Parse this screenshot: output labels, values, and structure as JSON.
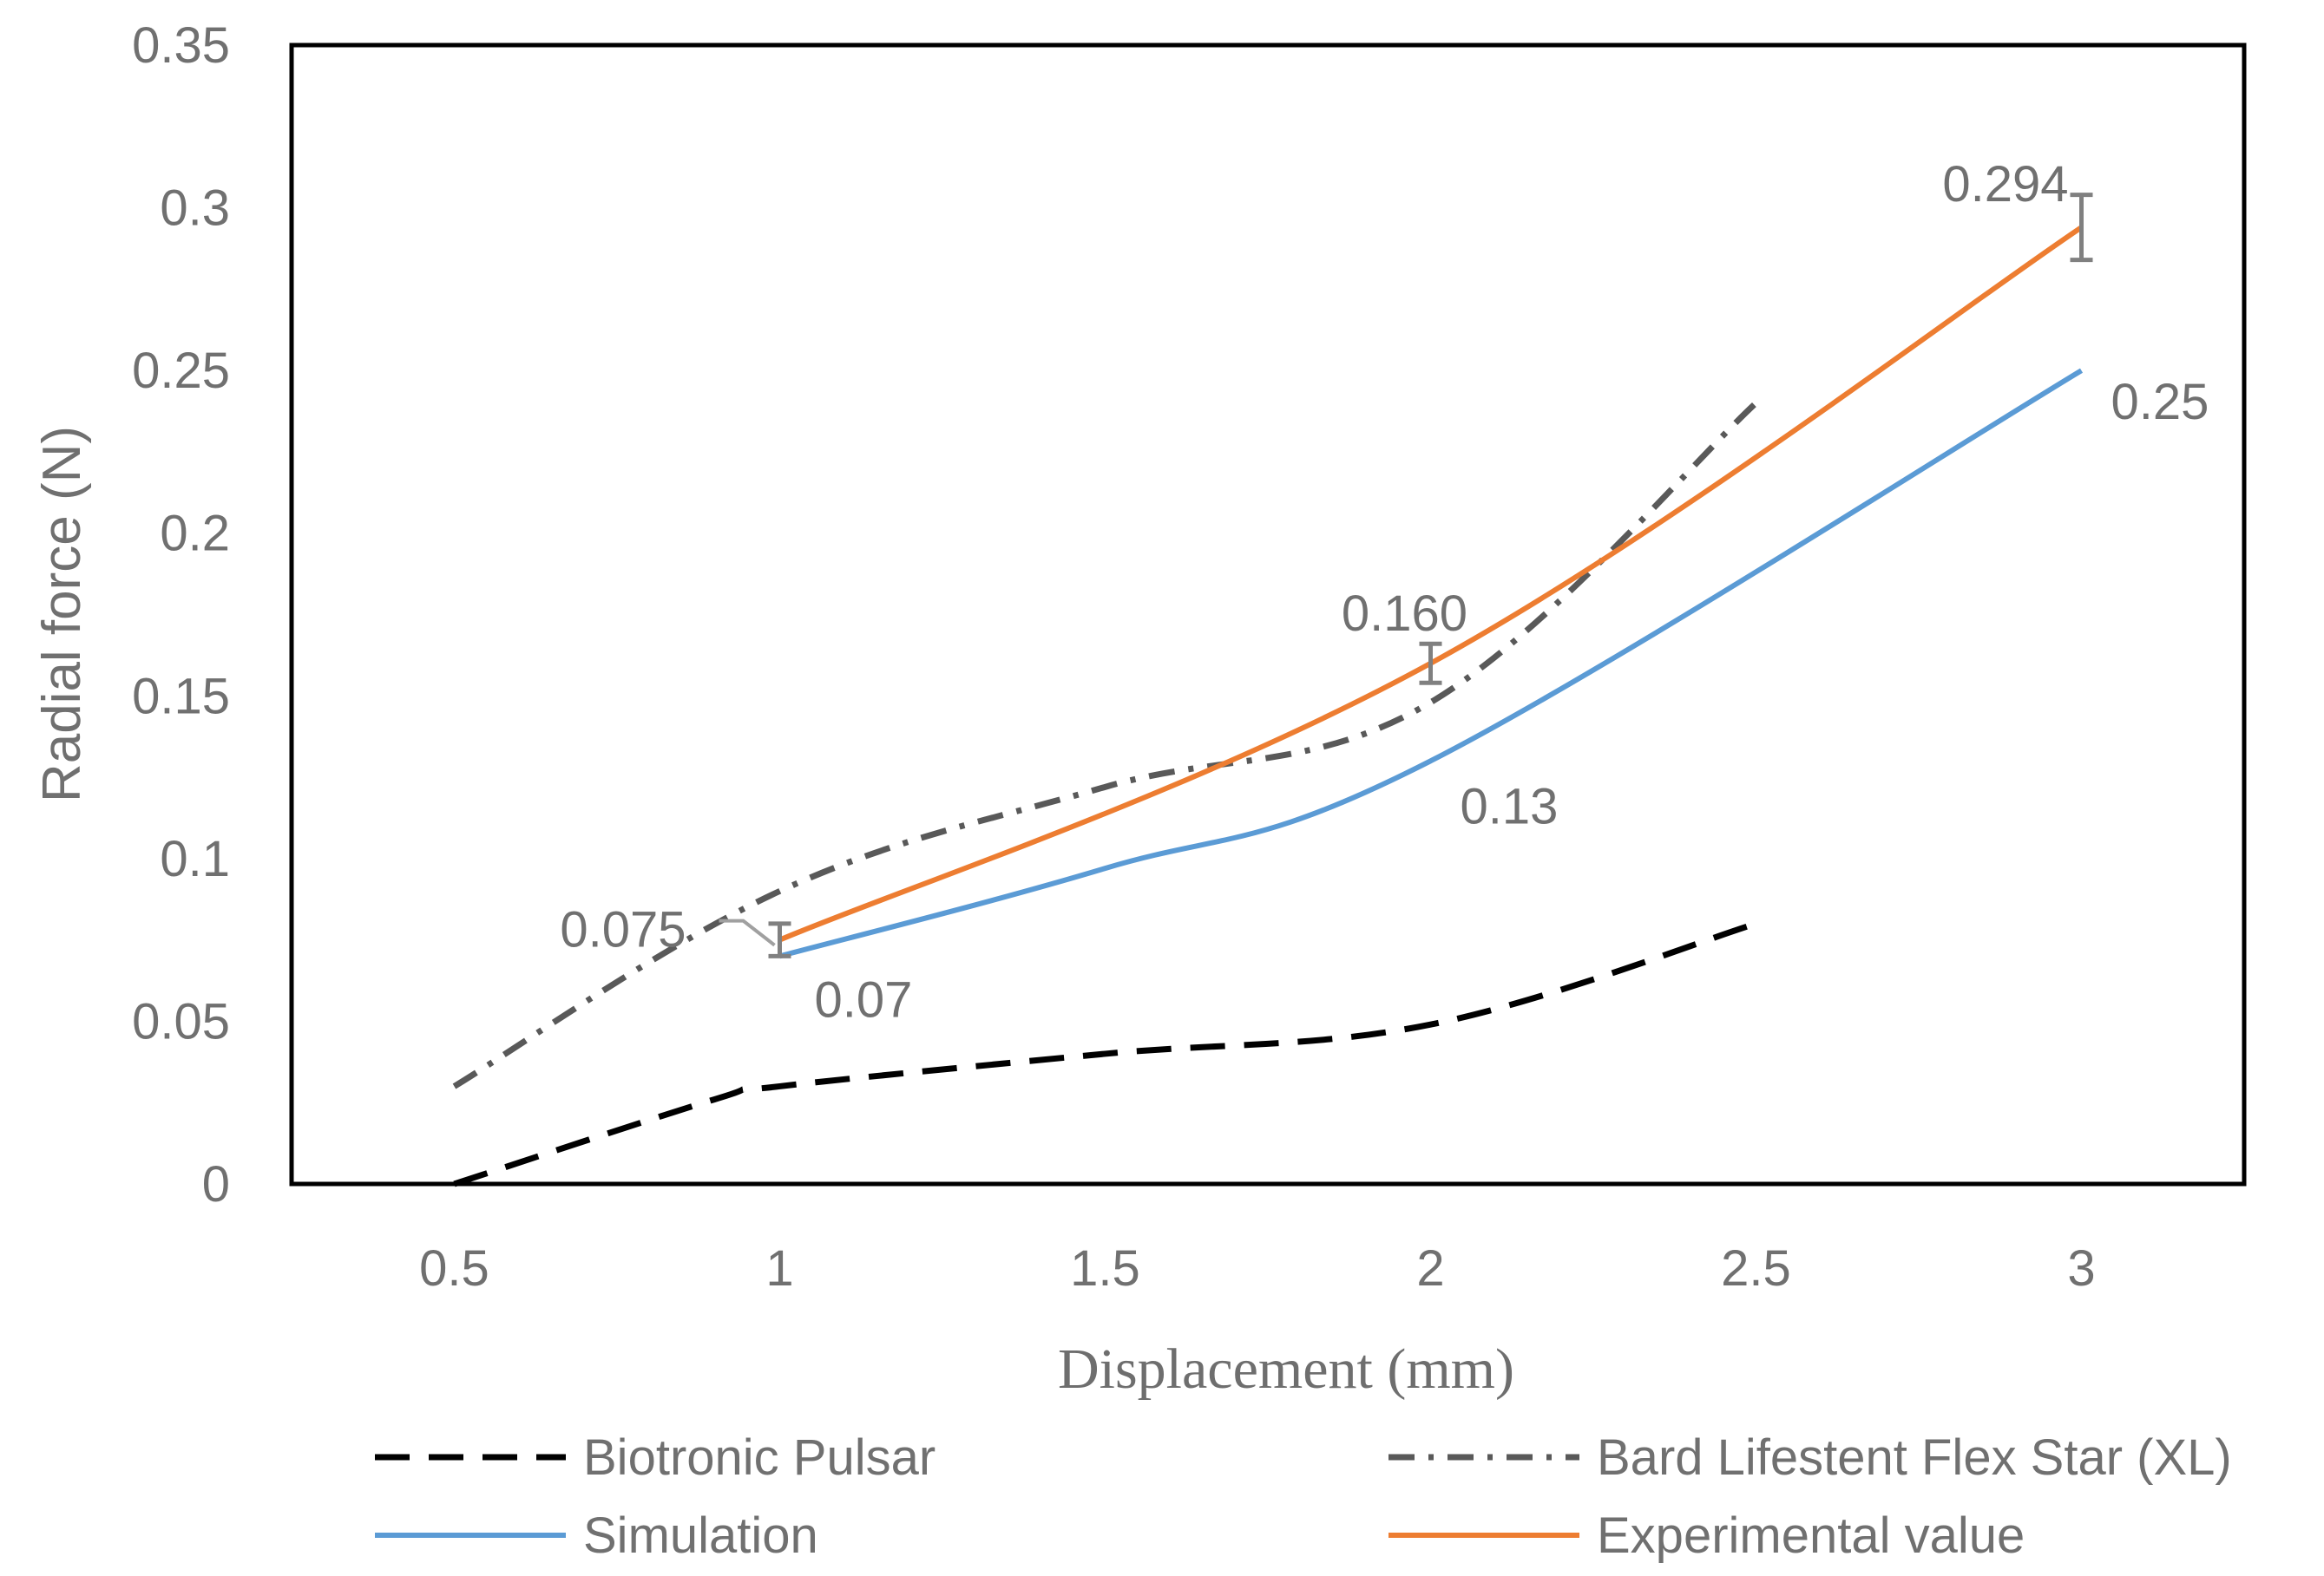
{
  "chart_data": {
    "type": "line",
    "title": "",
    "xlabel": "Displacement (mm)",
    "ylabel": "Radial force (N)",
    "xlim": [
      0.25,
      3.25
    ],
    "ylim": [
      0,
      0.35
    ],
    "x_ticks": [
      "0.5",
      "1",
      "1.5",
      "2",
      "2.5",
      "3"
    ],
    "y_ticks": [
      "0",
      "0.05",
      "0.1",
      "0.15",
      "0.2",
      "0.25",
      "0.3",
      "0.35"
    ],
    "grid": false,
    "legend_position": "bottom",
    "series": [
      {
        "name": "Biotronic Pulsar",
        "style": "dashed",
        "color": "#000000",
        "x": [
          0.5,
          0.9,
          1.0,
          1.5,
          2.0,
          2.5
        ],
        "y": [
          0.0,
          0.026,
          0.03,
          0.04,
          0.049,
          0.08
        ]
      },
      {
        "name": "Bard Lifestent Flex Star (XL)",
        "style": "dash-dot",
        "color": "#595959",
        "x": [
          0.5,
          1.0,
          1.5,
          2.0,
          2.5
        ],
        "y": [
          0.03,
          0.09,
          0.122,
          0.148,
          0.24
        ]
      },
      {
        "name": "Simulation",
        "style": "solid",
        "color": "#5b9bd5",
        "x": [
          1.0,
          1.5,
          2.0,
          3.0
        ],
        "y": [
          0.07,
          0.097,
          0.13,
          0.25
        ],
        "labels": [
          "0.07",
          "",
          "0.13",
          "0.25"
        ]
      },
      {
        "name": "Experimental value",
        "style": "solid",
        "color": "#ed7d31",
        "x": [
          1.0,
          2.0,
          3.0
        ],
        "y": [
          0.075,
          0.16,
          0.294
        ],
        "error": [
          0.005,
          0.006,
          0.01
        ],
        "labels": [
          "0.075",
          "0.160",
          "0.294"
        ]
      }
    ]
  }
}
